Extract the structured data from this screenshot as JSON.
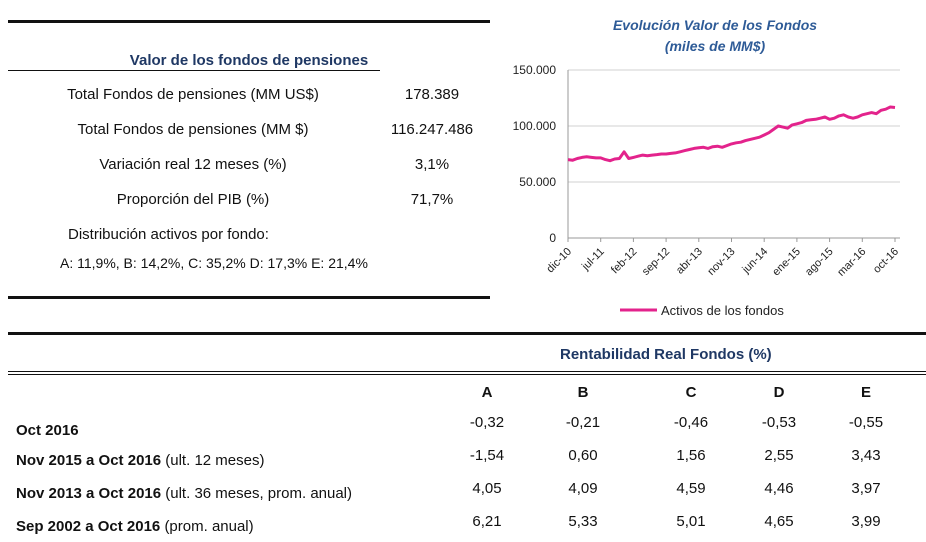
{
  "summary": {
    "title": "Valor de los fondos de pensiones",
    "rows": [
      [
        "Total Fondos de pensiones (MM US$)",
        "178.389"
      ],
      [
        "Total Fondos de pensiones (MM $)",
        "116.247.486"
      ],
      [
        "Variación real 12 meses (%)",
        "3,1%"
      ],
      [
        "Proporción del PIB (%)",
        "71,7%"
      ]
    ],
    "distribution_label": "Distribución activos por fondo:",
    "distribution": "A: 11,9%, B: 14,2%, C: 35,2% D: 17,3% E: 21,4%"
  },
  "chart_data": {
    "type": "line",
    "title": "Evolución Valor de los Fondos",
    "subtitle": "(miles de MM$)",
    "categories": [
      "dic-10",
      null,
      null,
      null,
      null,
      null,
      null,
      "jul-11",
      null,
      null,
      null,
      null,
      null,
      null,
      "feb-12",
      null,
      null,
      null,
      null,
      null,
      null,
      "sep-12",
      null,
      null,
      null,
      null,
      null,
      null,
      "abr-13",
      null,
      null,
      null,
      null,
      null,
      null,
      "nov-13",
      null,
      null,
      null,
      null,
      null,
      null,
      "jun-14",
      null,
      null,
      null,
      null,
      null,
      null,
      "ene-15",
      null,
      null,
      null,
      null,
      null,
      null,
      "ago-15",
      null,
      null,
      null,
      null,
      null,
      null,
      "mar-16",
      null,
      null,
      null,
      null,
      null,
      null,
      "oct-16"
    ],
    "series": [
      {
        "name": "Activos de los fondos",
        "color": "#e3238c",
        "values": [
          70000,
          69500,
          71000,
          72000,
          72500,
          72000,
          71500,
          71500,
          70000,
          69000,
          70500,
          71000,
          77000,
          71000,
          72000,
          73000,
          74000,
          73500,
          74000,
          74500,
          75000,
          75000,
          75500,
          76000,
          77000,
          78000,
          79000,
          80000,
          80500,
          81000,
          80000,
          81500,
          82000,
          81000,
          82500,
          84000,
          85000,
          85500,
          87000,
          88000,
          89000,
          90000,
          92000,
          94000,
          97000,
          100000,
          99000,
          98000,
          101000,
          102000,
          103000,
          105000,
          105500,
          106000,
          107000,
          108000,
          106000,
          107000,
          109000,
          110000,
          108000,
          107000,
          108000,
          110000,
          111000,
          112000,
          111000,
          114000,
          115000,
          117000,
          116500
        ]
      }
    ],
    "ylim": [
      0,
      150000
    ],
    "yticks": [
      0,
      {
        "value": 50000,
        "label": "50.000"
      },
      {
        "value": 100000,
        "label": "100.000"
      },
      {
        "value": 150000,
        "label": "150.000"
      }
    ],
    "grid": true,
    "legend": "bottom"
  },
  "returns": {
    "title": "Rentabilidad Real Fondos (%)",
    "columns": [
      "A",
      "B",
      "C",
      "D",
      "E"
    ],
    "rows": [
      {
        "period": "Oct 2016",
        "values": [
          "-0,32",
          "-0,21",
          "-0,46",
          "-0,53",
          "-0,55"
        ]
      },
      {
        "period": "Nov 2015 a Oct 2016",
        "note": "(ult. 12 meses)",
        "values": [
          "-1,54",
          "0,60",
          "1,56",
          "2,55",
          "3,43"
        ]
      },
      {
        "period": "Nov 2013 a Oct 2016",
        "note": "(ult. 36 meses, prom. anual)",
        "values": [
          "4,05",
          "4,09",
          "4,59",
          "4,46",
          "3,97"
        ]
      },
      {
        "period": "Sep 2002 a Oct 2016",
        "note": "(prom. anual)",
        "values": [
          "6,21",
          "5,33",
          "5,01",
          "4,65",
          "3,99"
        ]
      }
    ]
  }
}
